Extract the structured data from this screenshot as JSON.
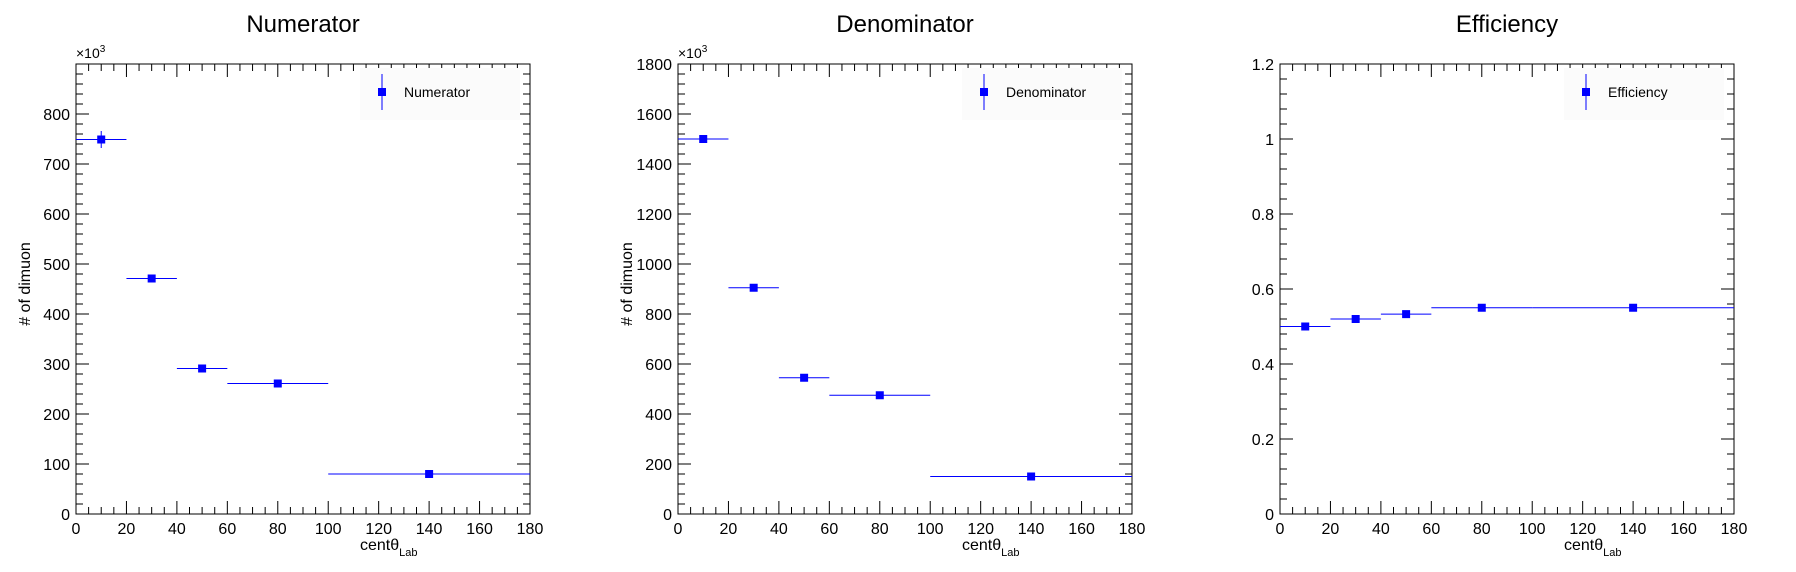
{
  "colors": {
    "marker": "#0000ff",
    "axis": "#000000",
    "legend_bg": "#fbfbfb"
  },
  "chart_data": [
    {
      "type": "scatter",
      "title": "Numerator",
      "xlabel": "centθ",
      "xlabel_sub": "Lab",
      "ylabel": "# of dimuon",
      "y_multiplier": "×10",
      "y_multiplier_exp": "3",
      "xlim": [
        0,
        180
      ],
      "ylim": [
        0,
        900
      ],
      "xticks": [
        0,
        20,
        40,
        60,
        80,
        100,
        120,
        140,
        160,
        180
      ],
      "yticks": [
        0,
        100,
        200,
        300,
        400,
        500,
        600,
        700,
        800
      ],
      "ytick_labels": [
        "0",
        "100",
        "200",
        "300",
        "400",
        "500",
        "600",
        "700",
        "800"
      ],
      "legend": {
        "label": "Numerator",
        "position": "top-right"
      },
      "grid": false,
      "series": [
        {
          "name": "Numerator",
          "x": [
            10,
            30,
            50,
            80,
            140
          ],
          "x_low": [
            0,
            20,
            40,
            60,
            100
          ],
          "x_high": [
            20,
            40,
            60,
            100,
            180
          ],
          "y": [
            749,
            471,
            291,
            261,
            80
          ],
          "y_err": [
            17,
            0,
            0,
            0,
            0
          ]
        }
      ]
    },
    {
      "type": "scatter",
      "title": "Denominator",
      "xlabel": "centθ",
      "xlabel_sub": "Lab",
      "ylabel": "# of dimuon",
      "y_multiplier": "×10",
      "y_multiplier_exp": "3",
      "xlim": [
        0,
        180
      ],
      "ylim": [
        0,
        1800
      ],
      "xticks": [
        0,
        20,
        40,
        60,
        80,
        100,
        120,
        140,
        160,
        180
      ],
      "yticks": [
        0,
        200,
        400,
        600,
        800,
        1000,
        1200,
        1400,
        1600,
        1800
      ],
      "ytick_labels": [
        "0",
        "200",
        "400",
        "600",
        "800",
        "1000",
        "1200",
        "1400",
        "1600",
        "1800"
      ],
      "legend": {
        "label": "Denominator",
        "position": "top-right"
      },
      "grid": false,
      "series": [
        {
          "name": "Denominator",
          "x": [
            10,
            30,
            50,
            80,
            140
          ],
          "x_low": [
            0,
            20,
            40,
            60,
            100
          ],
          "x_high": [
            20,
            40,
            60,
            100,
            180
          ],
          "y": [
            1500,
            905,
            545,
            475,
            150
          ],
          "y_err": [
            0,
            0,
            0,
            0,
            0
          ]
        }
      ]
    },
    {
      "type": "scatter",
      "title": "Efficiency",
      "xlabel": "centθ",
      "xlabel_sub": "Lab",
      "ylabel": "",
      "xlim": [
        0,
        180
      ],
      "ylim": [
        0,
        1.2
      ],
      "xticks": [
        0,
        20,
        40,
        60,
        80,
        100,
        120,
        140,
        160,
        180
      ],
      "yticks": [
        0,
        0.2,
        0.4,
        0.6,
        0.8,
        1.0,
        1.2
      ],
      "ytick_labels": [
        "0",
        "0.2",
        "0.4",
        "0.6",
        "0.8",
        "1",
        "1.2"
      ],
      "legend": {
        "label": "Efficiency",
        "position": "top-right"
      },
      "grid": false,
      "series": [
        {
          "name": "Efficiency",
          "x": [
            10,
            30,
            50,
            80,
            140
          ],
          "x_low": [
            0,
            20,
            40,
            60,
            100
          ],
          "x_high": [
            20,
            40,
            60,
            100,
            180
          ],
          "y": [
            0.5,
            0.52,
            0.533,
            0.55,
            0.55
          ],
          "y_err": [
            0,
            0,
            0,
            0,
            0
          ]
        }
      ]
    }
  ]
}
